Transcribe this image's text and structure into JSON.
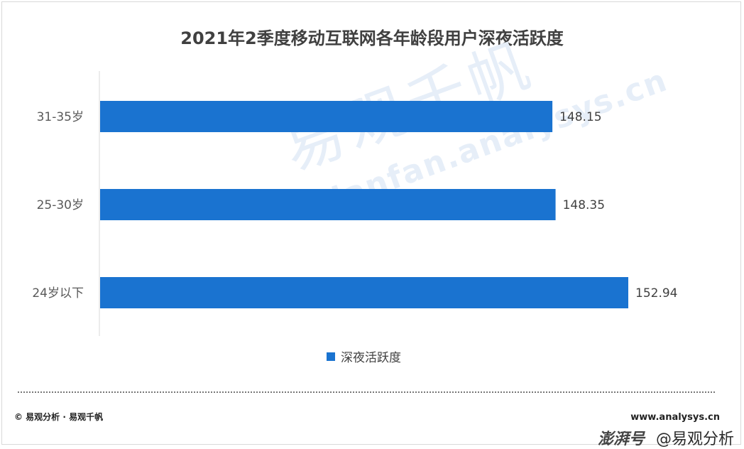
{
  "title": "2021年2季度移动互联网各年龄段用户深夜活跃度",
  "watermark": {
    "cn": "易观千帆",
    "en": "Qianfan.analysys.cn"
  },
  "legend": {
    "label": "深夜活跃度",
    "placement": "bottom-center"
  },
  "footer": {
    "copyright": "© 易观分析 · 易观千帆",
    "website": "www.analysys.cn",
    "brand_left": "澎湃号",
    "brand_right": "@易观分析"
  },
  "colors": {
    "bar": "#1a73d0",
    "text": "#404040"
  },
  "chart_data": {
    "type": "bar",
    "orientation": "horizontal",
    "title": "2021年2季度移动互联网各年龄段用户深夜活跃度",
    "categories": [
      "31-35岁",
      "25-30岁",
      "24岁以下"
    ],
    "series": [
      {
        "name": "深夜活跃度",
        "values": [
          148.15,
          148.35,
          152.94
        ]
      }
    ],
    "value_labels": [
      "148.15",
      "148.35",
      "152.94"
    ],
    "xlabel": "",
    "ylabel": "",
    "xlim": [
      119.6,
      152.94
    ],
    "grid": false,
    "legend_placement": "bottom"
  }
}
